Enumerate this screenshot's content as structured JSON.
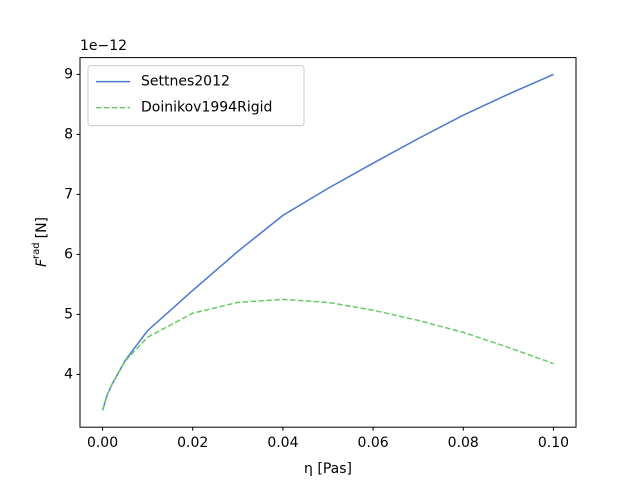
{
  "chart_data": {
    "type": "line",
    "xlabel": "η [Pas]",
    "ylabel": {
      "symbol": "F",
      "superscript": "rad",
      "unit": "[N]"
    },
    "y_offset_label": "1e−12",
    "x": [
      0,
      0.001,
      0.002,
      0.005,
      0.01,
      0.02,
      0.03,
      0.04,
      0.05,
      0.06,
      0.07,
      0.08,
      0.09,
      0.1
    ],
    "series": [
      {
        "name": "Settnes2012",
        "color": "#4878d0",
        "dash": false,
        "values": [
          3.4,
          3.65,
          3.82,
          4.23,
          4.73,
          5.4,
          6.05,
          6.65,
          7.1,
          7.52,
          7.93,
          8.32,
          8.67,
          9.0
        ]
      },
      {
        "name": "Doinikov1994Rigid",
        "color": "#6acc64",
        "dash": true,
        "values": [
          3.4,
          3.65,
          3.82,
          4.22,
          4.62,
          5.02,
          5.2,
          5.25,
          5.2,
          5.07,
          4.9,
          4.7,
          4.45,
          4.18
        ]
      }
    ],
    "xlim": [
      -0.005,
      0.105
    ],
    "ylim": [
      3.12,
      9.28
    ],
    "xticks": [
      {
        "value": 0,
        "label": "0.00"
      },
      {
        "value": 0.02,
        "label": "0.02"
      },
      {
        "value": 0.04,
        "label": "0.04"
      },
      {
        "value": 0.06,
        "label": "0.06"
      },
      {
        "value": 0.08,
        "label": "0.08"
      },
      {
        "value": 0.1,
        "label": "0.10"
      }
    ],
    "yticks": [
      4,
      5,
      6,
      7,
      8,
      9
    ],
    "grid": false,
    "legend": "upper-left"
  }
}
